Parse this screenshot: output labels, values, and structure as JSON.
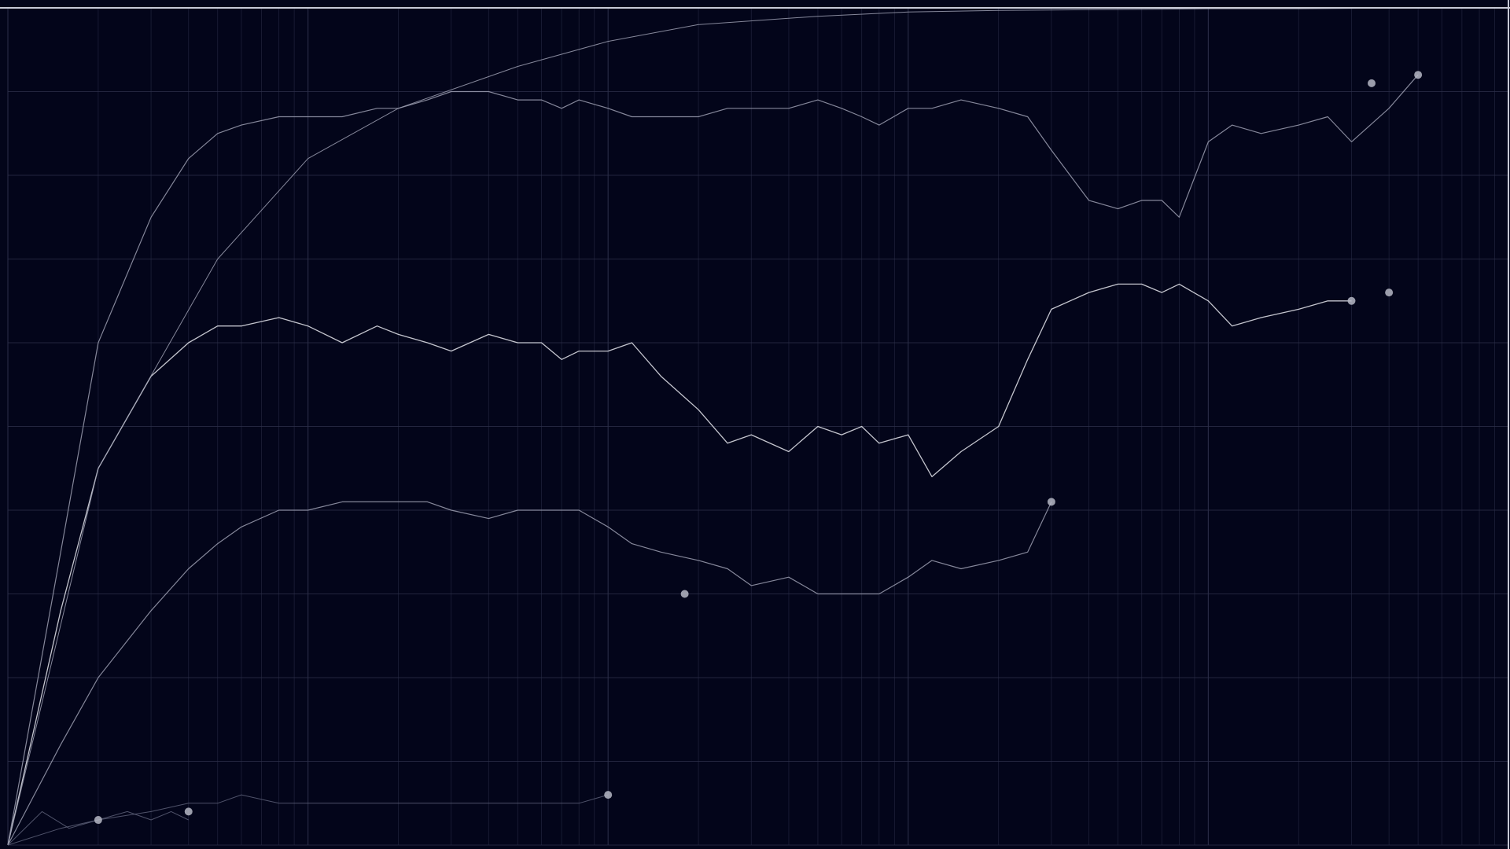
{
  "colors": {
    "background": "#03051a",
    "grid": "#2b2e48",
    "frame": "#c7c9d6",
    "line_bright": "#e6e7ef",
    "line_mid": "#9c9fb2",
    "line_dim": "#5d6078",
    "marker": "#b6b8c6"
  },
  "chart_data": {
    "type": "line",
    "xscale": "log",
    "xlim": [
      1,
      100000
    ],
    "ylim": [
      0,
      1
    ],
    "grid": true,
    "legend": "none",
    "xlabel": "",
    "ylabel": "",
    "series": [
      {
        "x": [
          1,
          1.5,
          2,
          3,
          4,
          5,
          6,
          8,
          10,
          13,
          17,
          20,
          25,
          30,
          40,
          50,
          60,
          70,
          80,
          100,
          120,
          150,
          200,
          250,
          300,
          400,
          500,
          600,
          700,
          800,
          1000,
          1200,
          1500,
          2000,
          2500,
          3000
        ],
        "y": [
          0.0,
          0.12,
          0.2,
          0.28,
          0.33,
          0.36,
          0.38,
          0.4,
          0.4,
          0.41,
          0.41,
          0.41,
          0.41,
          0.4,
          0.39,
          0.4,
          0.4,
          0.4,
          0.4,
          0.38,
          0.36,
          0.35,
          0.34,
          0.33,
          0.31,
          0.32,
          0.3,
          0.3,
          0.3,
          0.3,
          0.32,
          0.34,
          0.33,
          0.34,
          0.35,
          0.41
        ]
      },
      {
        "x": [
          1,
          1.5,
          2,
          3,
          4,
          5,
          6,
          8,
          10,
          13,
          17,
          20,
          25,
          30,
          40,
          50,
          60,
          70,
          80,
          100,
          120,
          150,
          200,
          250,
          300,
          400,
          500,
          600,
          700,
          800,
          1000,
          1200,
          1500,
          2000,
          2500,
          3000,
          4000,
          5000,
          6000,
          7000,
          8000,
          10000,
          12000,
          15000,
          20000,
          25000,
          30000
        ],
        "y": [
          0.0,
          0.28,
          0.45,
          0.56,
          0.6,
          0.62,
          0.62,
          0.63,
          0.62,
          0.6,
          0.62,
          0.61,
          0.6,
          0.59,
          0.61,
          0.6,
          0.6,
          0.58,
          0.59,
          0.59,
          0.6,
          0.56,
          0.52,
          0.48,
          0.49,
          0.47,
          0.5,
          0.49,
          0.5,
          0.48,
          0.49,
          0.44,
          0.47,
          0.5,
          0.58,
          0.64,
          0.66,
          0.67,
          0.67,
          0.66,
          0.67,
          0.65,
          0.62,
          0.63,
          0.64,
          0.65,
          0.65
        ]
      },
      {
        "x": [
          1,
          1.5,
          2,
          3,
          4,
          5,
          6,
          8,
          10,
          13,
          17,
          20,
          25,
          30,
          40,
          50,
          60,
          70,
          80,
          100,
          120,
          150,
          200,
          250,
          300,
          400,
          500,
          600,
          700,
          800,
          1000,
          1200,
          1500,
          2000,
          2500,
          3000,
          4000,
          5000,
          6000,
          7000,
          8000,
          10000,
          12000,
          15000,
          20000,
          25000,
          30000,
          40000,
          50000
        ],
        "y": [
          0.0,
          0.35,
          0.6,
          0.75,
          0.82,
          0.85,
          0.86,
          0.87,
          0.87,
          0.87,
          0.88,
          0.88,
          0.89,
          0.9,
          0.9,
          0.89,
          0.89,
          0.88,
          0.89,
          0.88,
          0.87,
          0.87,
          0.87,
          0.88,
          0.88,
          0.88,
          0.89,
          0.88,
          0.87,
          0.86,
          0.88,
          0.88,
          0.89,
          0.88,
          0.87,
          0.83,
          0.77,
          0.76,
          0.77,
          0.77,
          0.75,
          0.84,
          0.86,
          0.85,
          0.86,
          0.87,
          0.84,
          0.88,
          0.92
        ]
      },
      {
        "x": [
          1,
          1.5,
          2,
          3,
          4,
          5,
          6,
          8,
          10,
          13,
          17,
          20,
          25,
          30,
          40,
          50,
          60,
          70,
          80,
          100
        ],
        "y": [
          0.0,
          0.02,
          0.03,
          0.04,
          0.05,
          0.05,
          0.06,
          0.05,
          0.05,
          0.05,
          0.05,
          0.05,
          0.05,
          0.05,
          0.05,
          0.05,
          0.05,
          0.05,
          0.05,
          0.06
        ]
      },
      {
        "x": [
          1,
          1.3,
          1.6,
          2,
          2.5,
          3,
          3.5,
          4
        ],
        "y": [
          0.0,
          0.04,
          0.02,
          0.03,
          0.04,
          0.03,
          0.04,
          0.03
        ]
      },
      {
        "x": [
          1,
          2,
          5,
          10,
          20,
          50,
          100,
          200,
          500,
          1000,
          2000,
          5000,
          10000,
          20000,
          50000,
          100000
        ],
        "y": [
          0.0,
          0.45,
          0.7,
          0.82,
          0.88,
          0.93,
          0.96,
          0.98,
          0.99,
          0.995,
          0.997,
          0.998,
          0.999,
          0.999,
          1.0,
          1.0
        ]
      }
    ],
    "end_markers": [
      {
        "x": 3000,
        "y": 0.41
      },
      {
        "x": 180,
        "y": 0.3
      },
      {
        "x": 30000,
        "y": 0.65
      },
      {
        "x": 40000,
        "y": 0.66
      },
      {
        "x": 50000,
        "y": 0.92
      },
      {
        "x": 35000,
        "y": 0.91
      },
      {
        "x": 100,
        "y": 0.06
      },
      {
        "x": 4,
        "y": 0.04
      },
      {
        "x": 2,
        "y": 0.03
      }
    ]
  }
}
